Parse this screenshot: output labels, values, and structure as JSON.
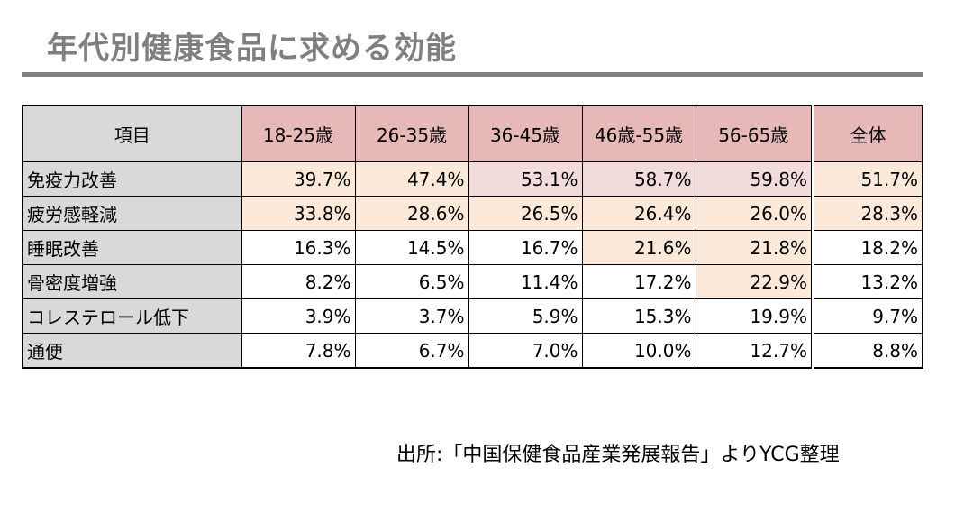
{
  "title": "年代別健康食品に求める効能",
  "source": "出所:「中国保健食品産業発展報告」よりYCG整理",
  "colors": {
    "header_age": "#e6b8b7",
    "header_item": "#d9d9d9",
    "highlight_orange": "#fde9d9",
    "highlight_pink": "#f2dcdb",
    "title_text": "#7f7f7f"
  },
  "chart_data": {
    "type": "table",
    "title": "年代別健康食品に求める効能",
    "columns": [
      "項目",
      "18-25歳",
      "26-35歳",
      "36-45歳",
      "46歳-55歳",
      "56-65歳",
      "全体"
    ],
    "rows": [
      {
        "label": "免疫力改善",
        "values": [
          "39.7%",
          "47.4%",
          "53.1%",
          "58.7%",
          "59.8%",
          "51.7%"
        ],
        "fills": [
          "orange",
          "orange",
          "pink",
          "pink",
          "pink",
          "orange"
        ]
      },
      {
        "label": "疲労感軽減",
        "values": [
          "33.8%",
          "28.6%",
          "26.5%",
          "26.4%",
          "26.0%",
          "28.3%"
        ],
        "fills": [
          "orange",
          "orange",
          "orange",
          "orange",
          "orange",
          "orange"
        ]
      },
      {
        "label": "睡眠改善",
        "values": [
          "16.3%",
          "14.5%",
          "16.7%",
          "21.6%",
          "21.8%",
          "18.2%"
        ],
        "fills": [
          "white",
          "white",
          "white",
          "orange",
          "orange",
          "white"
        ]
      },
      {
        "label": "骨密度増強",
        "values": [
          "8.2%",
          "6.5%",
          "11.4%",
          "17.2%",
          "22.9%",
          "13.2%"
        ],
        "fills": [
          "white",
          "white",
          "white",
          "white",
          "orange",
          "white"
        ]
      },
      {
        "label": "コレステロール低下",
        "values": [
          "3.9%",
          "3.7%",
          "5.9%",
          "15.3%",
          "19.9%",
          "9.7%"
        ],
        "fills": [
          "white",
          "white",
          "white",
          "white",
          "white",
          "white"
        ]
      },
      {
        "label": "通便",
        "values": [
          "7.8%",
          "6.7%",
          "7.0%",
          "10.0%",
          "12.7%",
          "8.8%"
        ],
        "fills": [
          "white",
          "white",
          "white",
          "white",
          "white",
          "white"
        ]
      }
    ]
  }
}
